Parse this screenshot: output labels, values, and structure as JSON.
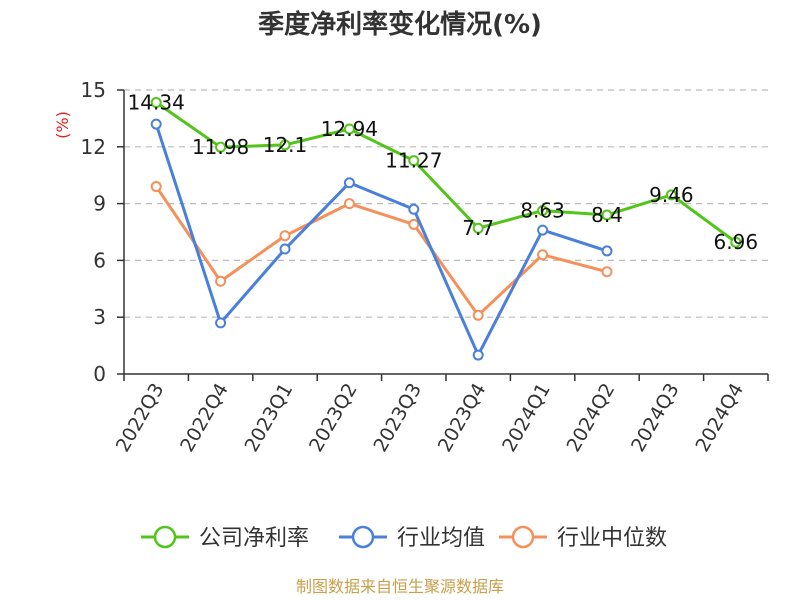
{
  "chart_data": {
    "type": "line",
    "title": "季度净利率变化情况(%)",
    "xlabel": "",
    "ylabel": "(%)",
    "ylim": [
      0,
      15
    ],
    "yticks": [
      0,
      3,
      6,
      9,
      12,
      15
    ],
    "grid": true,
    "legend_position": "bottom",
    "categories": [
      "2022Q3",
      "2022Q4",
      "2023Q1",
      "2023Q2",
      "2023Q3",
      "2023Q4",
      "2024Q1",
      "2024Q2",
      "2024Q3",
      "2024Q4"
    ],
    "series": [
      {
        "name": "公司净利率",
        "color": "#52c41a",
        "values": [
          14.34,
          11.98,
          12.1,
          12.94,
          11.27,
          7.7,
          8.63,
          8.4,
          9.46,
          6.96
        ],
        "show_labels": true
      },
      {
        "name": "行业均值",
        "color": "#4a7fdc",
        "values": [
          13.2,
          2.7,
          6.6,
          10.1,
          8.7,
          1.0,
          7.6,
          6.5,
          null,
          null
        ],
        "show_labels": false
      },
      {
        "name": "行业中位数",
        "color": "#f5905a",
        "values": [
          9.9,
          4.9,
          7.3,
          9.0,
          7.9,
          3.1,
          6.3,
          5.4,
          null,
          null
        ],
        "show_labels": false
      }
    ]
  },
  "source": "制图数据来自恒生聚源数据库"
}
